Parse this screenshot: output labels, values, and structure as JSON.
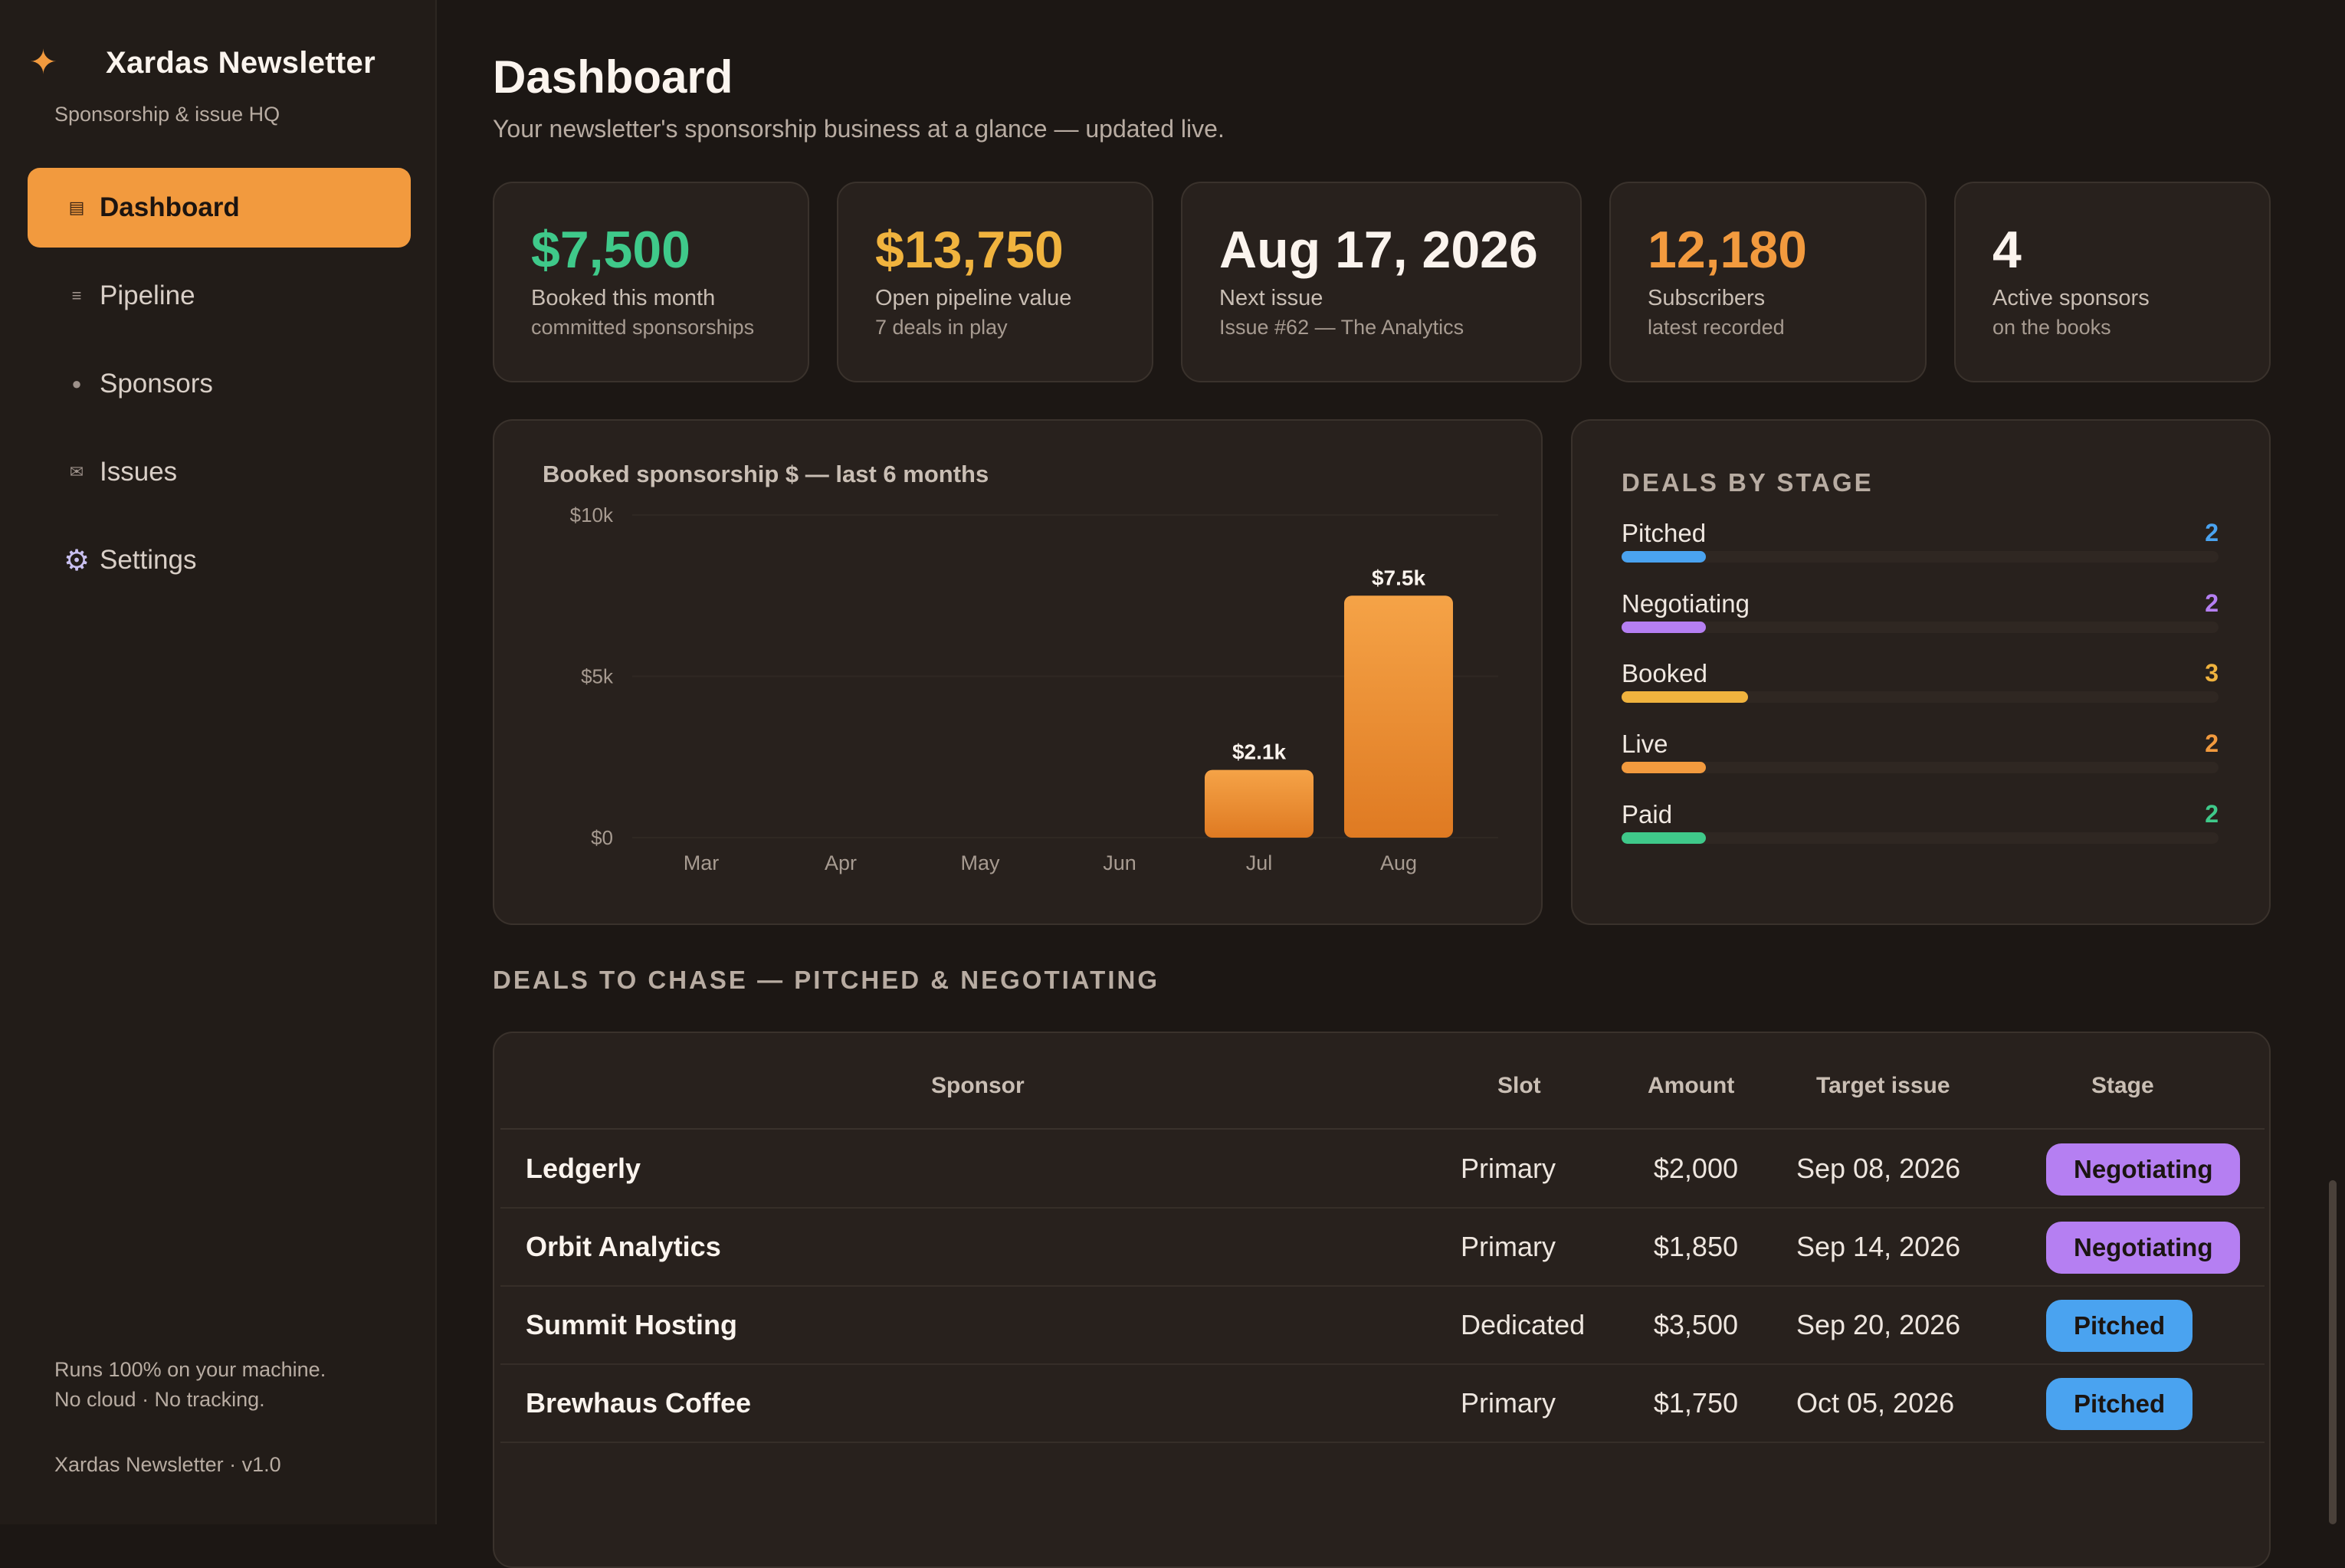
{
  "sidebar": {
    "brand": "Xardas Newsletter",
    "brand_sub": "Sponsorship & issue HQ",
    "items": [
      {
        "label": "Dashboard",
        "icon": "newsletter-icon",
        "glyph": "▤"
      },
      {
        "label": "Pipeline",
        "icon": "list-icon",
        "glyph": "≡"
      },
      {
        "label": "Sponsors",
        "icon": "dot-icon",
        "glyph": "●"
      },
      {
        "label": "Issues",
        "icon": "envelope-icon",
        "glyph": "✉"
      },
      {
        "label": "Settings",
        "icon": "gear-icon",
        "glyph": "⚙"
      }
    ],
    "footer_line1": "Runs 100% on your machine.",
    "footer_line2": "No cloud · No tracking.",
    "version": "Xardas Newsletter · v1.0"
  },
  "header": {
    "title": "Dashboard",
    "subtitle": "Your newsletter's sponsorship business at a glance — updated live."
  },
  "kpis": [
    {
      "value": "$7,500",
      "label": "Booked this month",
      "sub": "committed sponsorships",
      "color": "#3fc98a"
    },
    {
      "value": "$13,750",
      "label": "Open pipeline value",
      "sub": "7 deals in play",
      "color": "#f0b33e"
    },
    {
      "value": "Aug 17, 2026",
      "label": "Next issue",
      "sub": "Issue #62 — The Analytics",
      "color": "#fbf4ee"
    },
    {
      "value": "12,180",
      "label": "Subscribers",
      "sub": "latest recorded",
      "color": "#f29a3e"
    },
    {
      "value": "4",
      "label": "Active sponsors",
      "sub": "on the books",
      "color": "#fbf4ee"
    }
  ],
  "chart_data": {
    "type": "bar",
    "title": "Booked sponsorship $ — last 6 months",
    "categories": [
      "Mar",
      "Apr",
      "May",
      "Jun",
      "Jul",
      "Aug"
    ],
    "values": [
      0,
      0,
      0,
      0,
      2100,
      7500
    ],
    "data_labels": [
      "",
      "",
      "",
      "",
      "$2.1k",
      "$7.5k"
    ],
    "y_ticks": [
      "$0",
      "$5k",
      "$10k"
    ],
    "ylim": [
      0,
      10000
    ],
    "bar_color": "#f29a3e",
    "grid": true
  },
  "stages": {
    "title": "DEALS BY STAGE",
    "max": 10,
    "items": [
      {
        "name": "Pitched",
        "count": "2",
        "value": 2,
        "color": "#4aa3f0"
      },
      {
        "name": "Negotiating",
        "count": "2",
        "value": 2,
        "color": "#b57ff2"
      },
      {
        "name": "Booked",
        "count": "3",
        "value": 3,
        "color": "#f0b33e"
      },
      {
        "name": "Live",
        "count": "2",
        "value": 2,
        "color": "#f29a3e"
      },
      {
        "name": "Paid",
        "count": "2",
        "value": 2,
        "color": "#3fc98a"
      }
    ]
  },
  "deals": {
    "section_title": "DEALS TO CHASE — PITCHED & NEGOTIATING",
    "columns": {
      "sponsor": "Sponsor",
      "slot": "Slot",
      "amount": "Amount",
      "target": "Target issue",
      "stage": "Stage"
    },
    "rows": [
      {
        "sponsor": "Ledgerly",
        "slot": "Primary",
        "amount": "$2,000",
        "target": "Sep 08, 2026",
        "stage": "Negotiating",
        "stage_color": "#b57ff2"
      },
      {
        "sponsor": "Orbit Analytics",
        "slot": "Primary",
        "amount": "$1,850",
        "target": "Sep 14, 2026",
        "stage": "Negotiating",
        "stage_color": "#b57ff2"
      },
      {
        "sponsor": "Summit Hosting",
        "slot": "Dedicated",
        "amount": "$3,500",
        "target": "Sep 20, 2026",
        "stage": "Pitched",
        "stage_color": "#4aa3f0"
      },
      {
        "sponsor": "Brewhaus Coffee",
        "slot": "Primary",
        "amount": "$1,750",
        "target": "Oct 05, 2026",
        "stage": "Pitched",
        "stage_color": "#4aa3f0"
      }
    ]
  }
}
